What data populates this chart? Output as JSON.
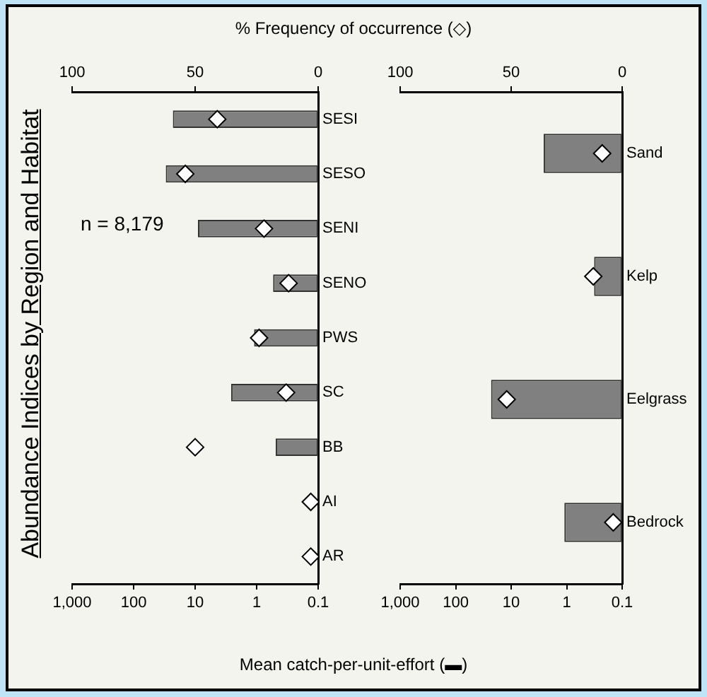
{
  "chart_data": [
    {
      "type": "bar",
      "orientation": "horizontal",
      "title": "Abundance Indices by Region and Habitat",
      "xlabel": "Mean catch-per-unit-effort (▬)",
      "x2label": "% Frequency of occurrence (◇)",
      "annotations": [
        "n = 8,179"
      ],
      "categories": [
        "SESI",
        "SESO",
        "SENI",
        "SENO",
        "PWS",
        "SC",
        "BB",
        "AI",
        "AR"
      ],
      "series": [
        {
          "type": "bar",
          "color": "#808080",
          "values": [
            23,
            30,
            9,
            0.54,
            1.1,
            2.6,
            0.49,
            null,
            null
          ]
        },
        {
          "type": "scatter",
          "axis": "x2",
          "color": "#ffffff",
          "marker": "diamond",
          "values": [
            41,
            54,
            22,
            12,
            24,
            13,
            50,
            3,
            3
          ]
        }
      ],
      "log": "x",
      "xlim": [
        1000,
        0.1
      ],
      "xticks": [
        {
          "value": 1000,
          "label": "1,000"
        },
        100,
        10,
        1,
        0.1
      ],
      "x2lim": [
        100,
        0
      ],
      "x2ticks": [
        100,
        50,
        0
      ],
      "grid": false
    },
    {
      "type": "bar",
      "orientation": "horizontal",
      "categories": [
        "Sand",
        "Kelp",
        "Eelgrass",
        "Bedrock"
      ],
      "series": [
        {
          "type": "bar",
          "color": "#808080",
          "values": [
            2.6,
            0.32,
            23,
            1.1
          ]
        },
        {
          "type": "scatter",
          "axis": "x2",
          "color": "#ffffff",
          "marker": "diamond",
          "values": [
            9,
            13,
            52,
            4
          ]
        }
      ],
      "log": "x",
      "xlim": [
        1000,
        0.1
      ],
      "xticks": [
        {
          "value": 1000,
          "label": "1,000"
        },
        100,
        10,
        1,
        0.1
      ],
      "x2lim": [
        100,
        0
      ],
      "x2ticks": [
        100,
        50,
        0
      ],
      "grid": false
    }
  ]
}
